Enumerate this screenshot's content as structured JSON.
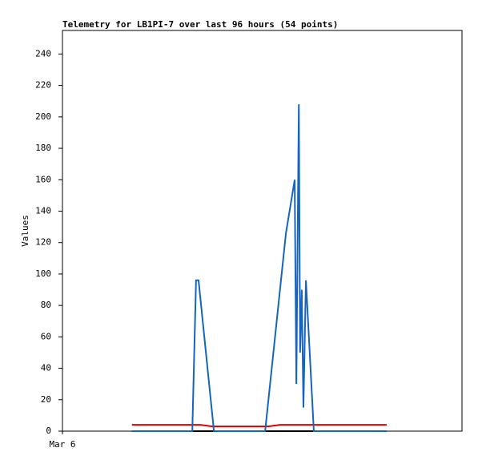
{
  "chart_data": {
    "type": "line",
    "title": "Telemetry for LB1PI-7 over last 96 hours (54 points)",
    "y_label": "Values",
    "xlim": [
      0,
      96
    ],
    "xticks": [
      {
        "value": 0,
        "label": "Mar 6"
      }
    ],
    "ylim": [
      0,
      255
    ],
    "yticks": [
      0,
      20,
      40,
      60,
      80,
      100,
      120,
      140,
      160,
      180,
      200,
      220,
      240
    ],
    "grid": false,
    "series": [
      {
        "color": "#1565c0",
        "x": [
          16.7,
          31.2,
          32.1,
          32.7,
          36.4,
          48.7,
          53.7,
          55.8,
          56.2,
          56.8,
          57.1,
          57.5,
          57.9,
          58.5,
          60.4,
          77.9
        ],
        "values": [
          0,
          0,
          96,
          96,
          0,
          0,
          126,
          160,
          30,
          208,
          50,
          90,
          15,
          96,
          0,
          0
        ]
      },
      {
        "color": "#e00000",
        "x": [
          16.7,
          33.1,
          36.0,
          49.4,
          52.3,
          77.9
        ],
        "values": [
          4,
          4,
          3,
          3,
          4,
          4
        ]
      },
      {
        "color": "#000000",
        "x": [
          16.7,
          77.9
        ],
        "values": [
          0,
          0
        ]
      }
    ]
  }
}
